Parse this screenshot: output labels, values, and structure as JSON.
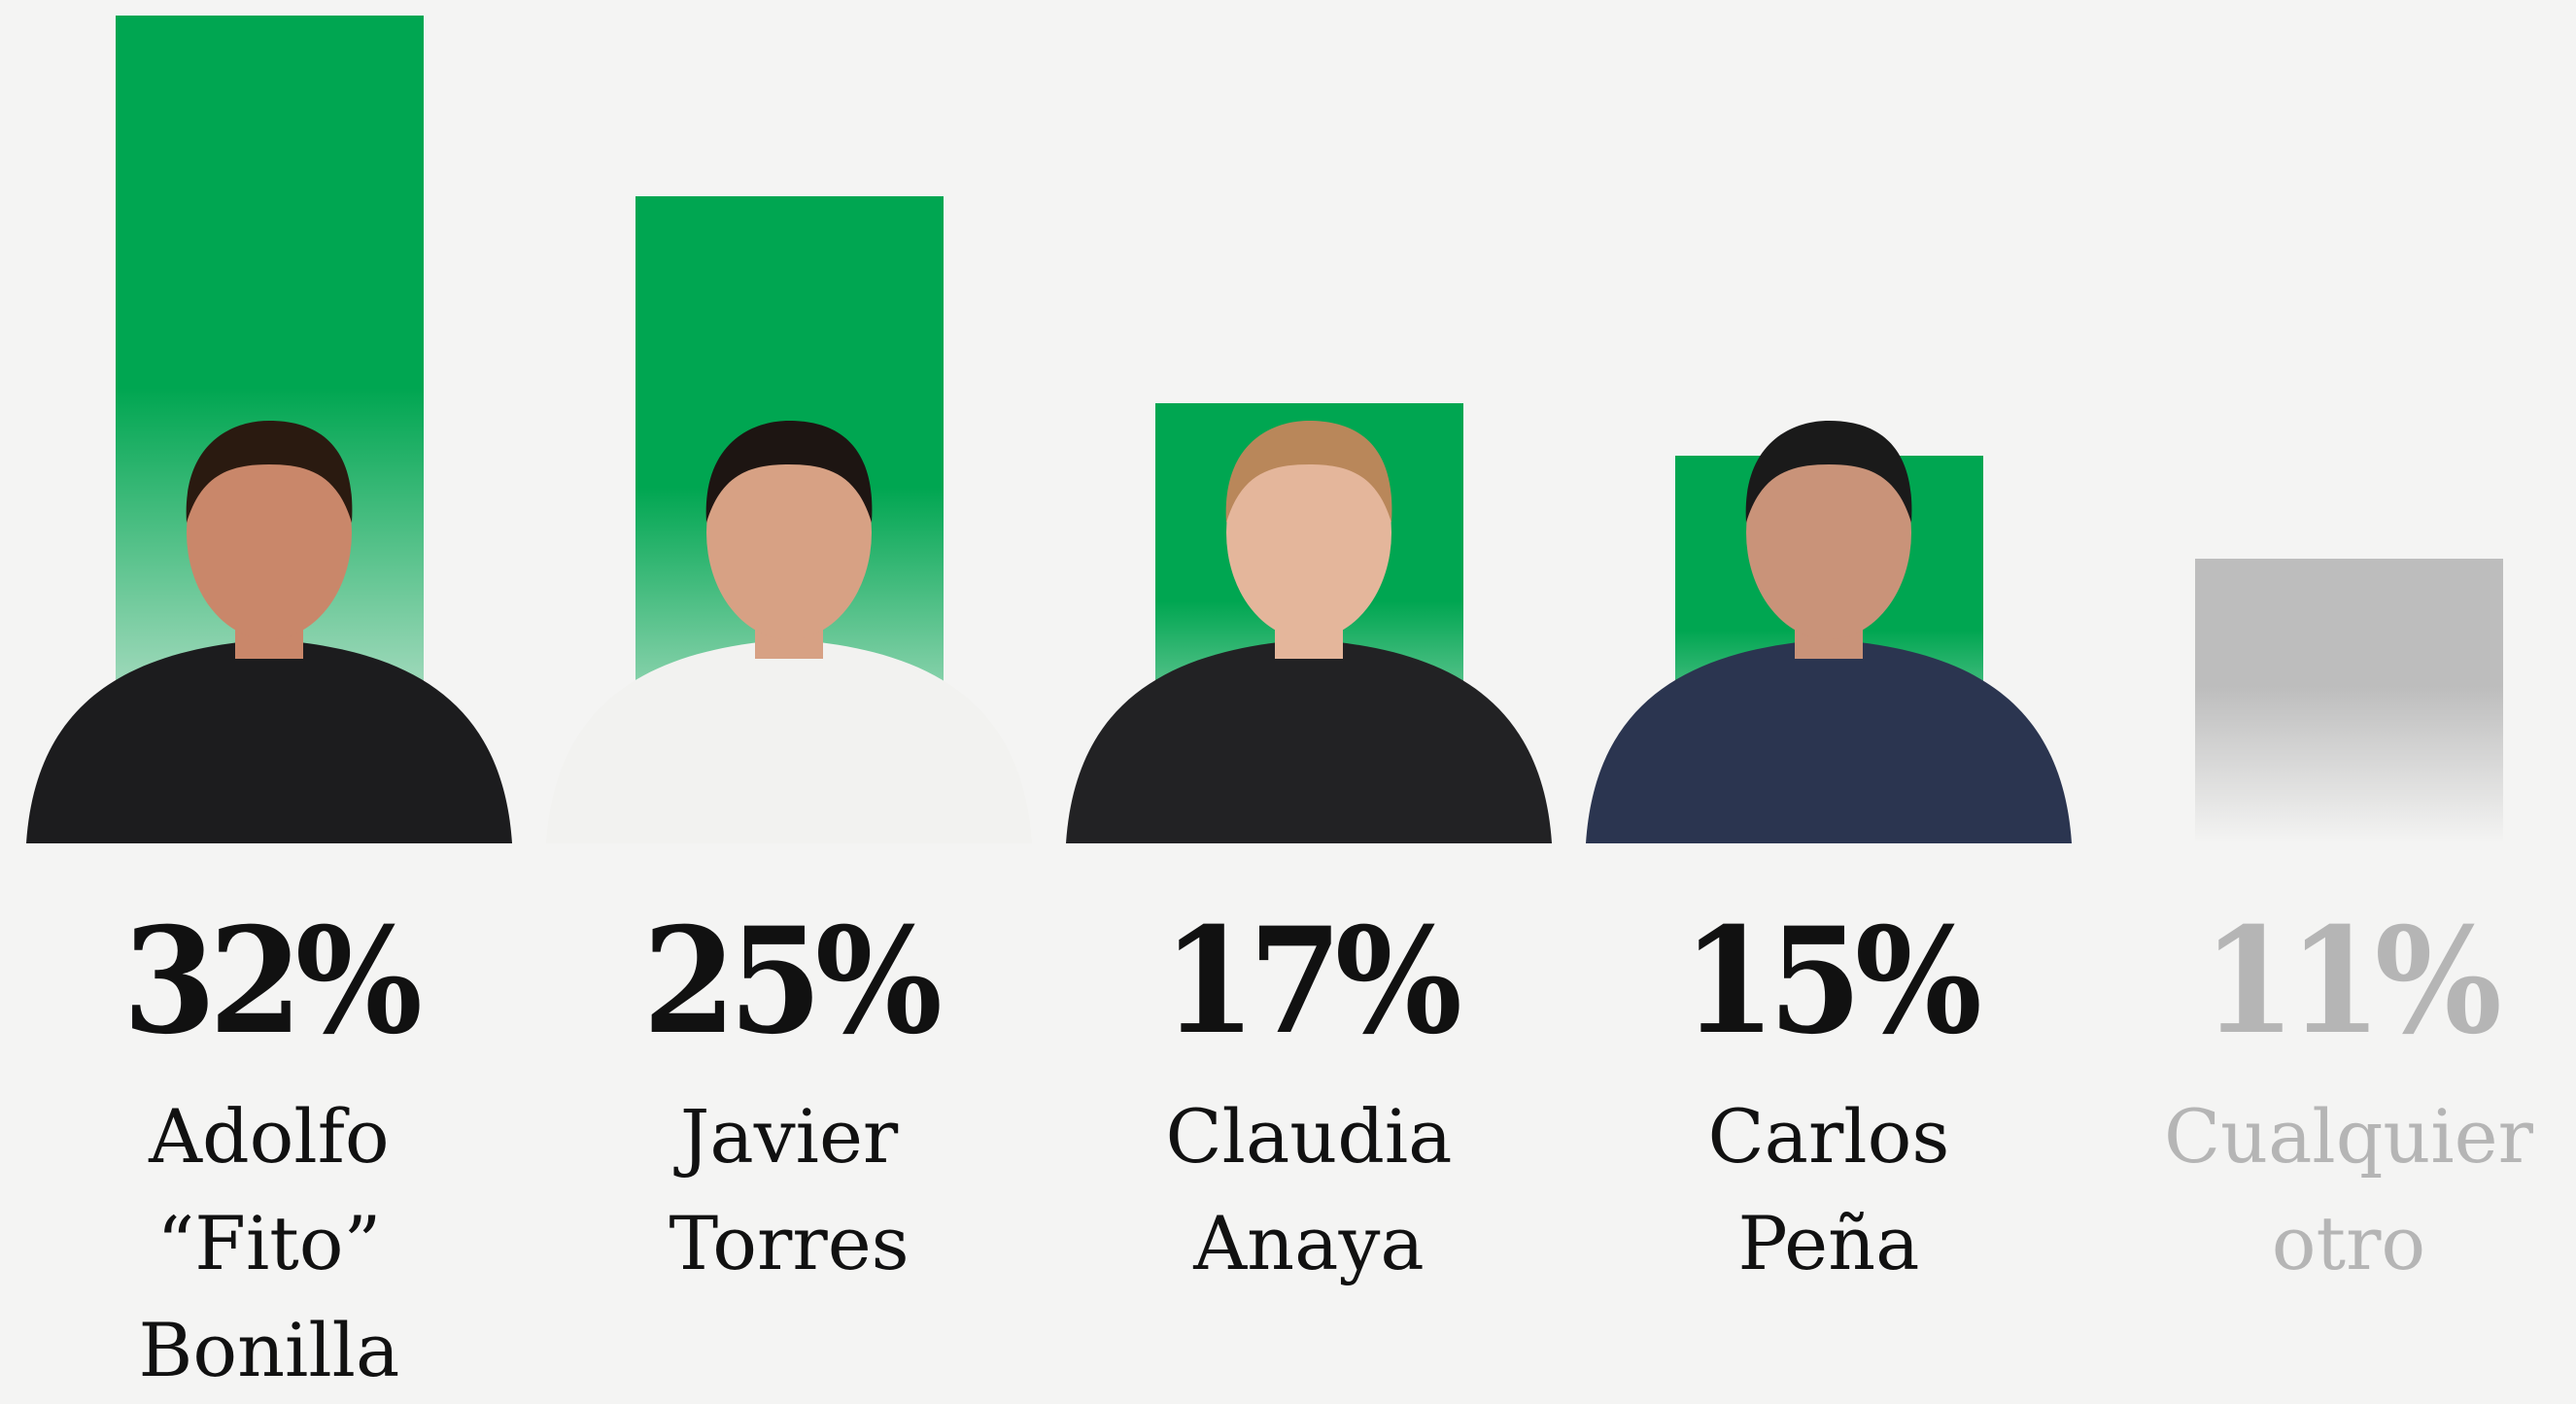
{
  "chart_data": {
    "type": "bar",
    "categories": [
      "Adolfo “Fito” Bonilla",
      "Javier Torres",
      "Claudia Anaya",
      "Carlos Peña",
      "Cualquier otro"
    ],
    "values": [
      32,
      25,
      17,
      15,
      11
    ],
    "value_labels": [
      "32%",
      "25%",
      "17%",
      "15%",
      "11%"
    ],
    "colors": [
      "#00a651",
      "#00a651",
      "#00a651",
      "#00a651",
      "#bdbdbd"
    ],
    "label_colors": [
      "#111111",
      "#111111",
      "#111111",
      "#111111",
      "#b5b5b5"
    ],
    "ylim": [
      0,
      32.6
    ]
  }
}
